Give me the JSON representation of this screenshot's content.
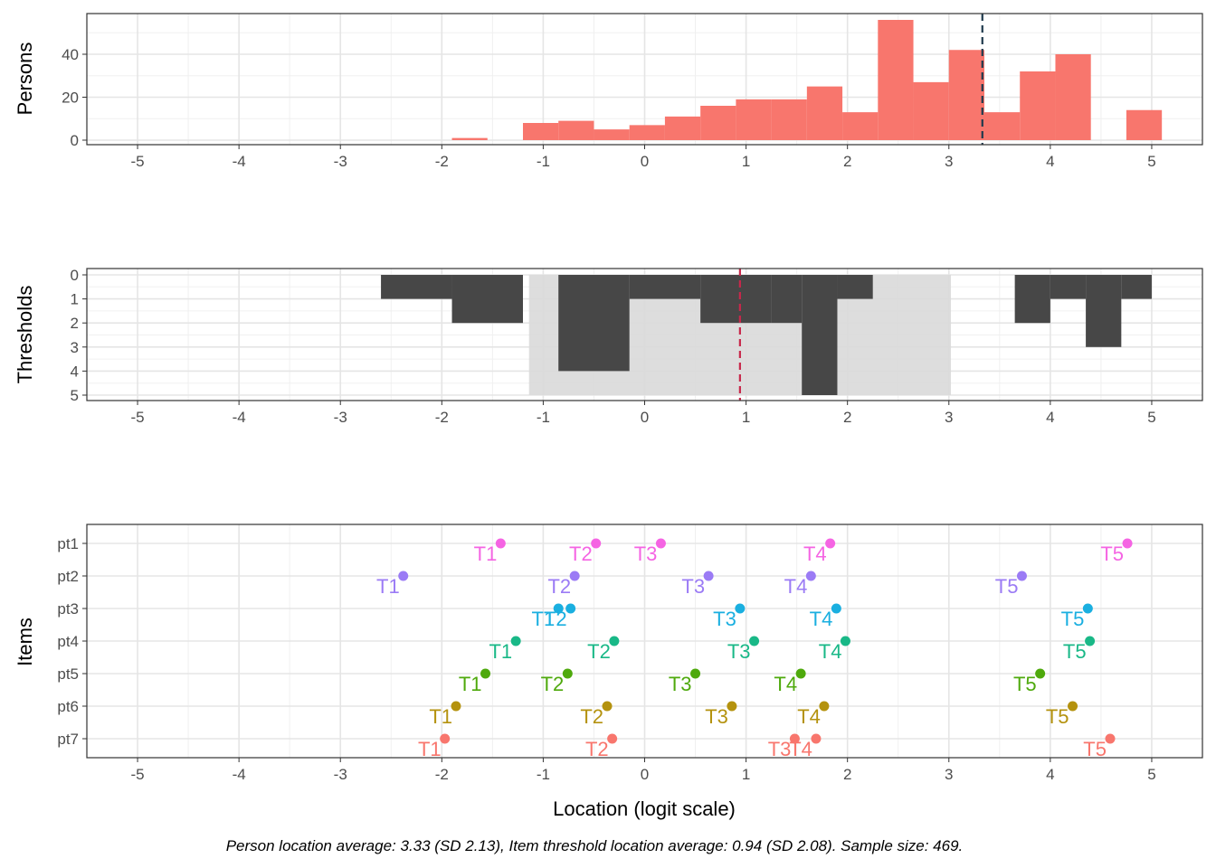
{
  "chart_data": [
    {
      "type": "bar",
      "ylabel": "Persons",
      "xlim": [
        -5.5,
        5.5
      ],
      "ylim": [
        0,
        58
      ],
      "x_ticks": [
        -5,
        -4,
        -3,
        -2,
        -1,
        0,
        1,
        2,
        3,
        4,
        5
      ],
      "y_ticks": [
        0,
        20,
        40
      ],
      "bar_color": "#F8766D",
      "bins": [
        {
          "x0": -1.9,
          "x1": -1.55,
          "count": 1
        },
        {
          "x0": -1.2,
          "x1": -0.85,
          "count": 8
        },
        {
          "x0": -0.85,
          "x1": -0.5,
          "count": 9
        },
        {
          "x0": -0.5,
          "x1": -0.15,
          "count": 5
        },
        {
          "x0": -0.15,
          "x1": 0.2,
          "count": 7
        },
        {
          "x0": 0.2,
          "x1": 0.55,
          "count": 11
        },
        {
          "x0": 0.55,
          "x1": 0.9,
          "count": 16
        },
        {
          "x0": 0.9,
          "x1": 1.25,
          "count": 19
        },
        {
          "x0": 1.25,
          "x1": 1.6,
          "count": 19
        },
        {
          "x0": 1.6,
          "x1": 1.95,
          "count": 25
        },
        {
          "x0": 1.95,
          "x1": 2.3,
          "count": 13
        },
        {
          "x0": 2.3,
          "x1": 2.65,
          "count": 56
        },
        {
          "x0": 2.65,
          "x1": 3.0,
          "count": 27
        },
        {
          "x0": 3.0,
          "x1": 3.35,
          "count": 42
        },
        {
          "x0": 3.35,
          "x1": 3.7,
          "count": 13
        },
        {
          "x0": 3.7,
          "x1": 4.05,
          "count": 32
        },
        {
          "x0": 4.05,
          "x1": 4.4,
          "count": 40
        },
        {
          "x0": 4.75,
          "x1": 5.1,
          "count": 14
        }
      ],
      "mean_line": {
        "x": 3.33,
        "color": "#1F3A4D"
      }
    },
    {
      "type": "bar",
      "ylabel": "Thresholds",
      "xlim": [
        -5.5,
        5.5
      ],
      "ylim": [
        0,
        5
      ],
      "y_reversed": true,
      "x_ticks": [
        -5,
        -4,
        -3,
        -2,
        -1,
        0,
        1,
        2,
        3,
        4,
        5
      ],
      "y_ticks": [
        0,
        1,
        2,
        3,
        4,
        5
      ],
      "bar_color": "#474747",
      "bins": [
        {
          "x0": -2.6,
          "x1": -1.9,
          "count": 1
        },
        {
          "x0": -1.9,
          "x1": -1.2,
          "count": 2
        },
        {
          "x0": -0.85,
          "x1": -0.15,
          "count": 4
        },
        {
          "x0": -0.15,
          "x1": 0.55,
          "count": 1
        },
        {
          "x0": 0.55,
          "x1": 1.25,
          "count": 2
        },
        {
          "x0": 1.25,
          "x1": 1.55,
          "count": 2
        },
        {
          "x0": 1.55,
          "x1": 1.9,
          "count": 5
        },
        {
          "x0": 1.9,
          "x1": 2.25,
          "count": 1
        },
        {
          "x0": 3.65,
          "x1": 4.0,
          "count": 2
        },
        {
          "x0": 4.0,
          "x1": 4.35,
          "count": 1
        },
        {
          "x0": 4.35,
          "x1": 4.7,
          "count": 3
        },
        {
          "x0": 4.7,
          "x1": 5.0,
          "count": 1
        }
      ],
      "sd_band": {
        "x0": -1.14,
        "x1": 3.02,
        "color": "#D9D9D9"
      },
      "mean_line": {
        "x": 0.94,
        "color": "#C8284B"
      }
    },
    {
      "type": "scatter",
      "ylabel": "Items",
      "xlabel": "Location (logit scale)",
      "xlim": [
        -5.5,
        5.5
      ],
      "x_ticks": [
        -5,
        -4,
        -3,
        -2,
        -1,
        0,
        1,
        2,
        3,
        4,
        5
      ],
      "categories": [
        "pt1",
        "pt2",
        "pt3",
        "pt4",
        "pt5",
        "pt6",
        "pt7"
      ],
      "series": [
        {
          "item": "pt1",
          "color": "#F564E3",
          "thresholds": [
            {
              "label": "T1",
              "x": -1.42
            },
            {
              "label": "T2",
              "x": -0.48
            },
            {
              "label": "T3",
              "x": 0.16
            },
            {
              "label": "T4",
              "x": 1.83
            },
            {
              "label": "T5",
              "x": 4.76
            }
          ]
        },
        {
          "item": "pt2",
          "color": "#9B7BF5",
          "thresholds": [
            {
              "label": "T1",
              "x": -2.38
            },
            {
              "label": "T2",
              "x": -0.69
            },
            {
              "label": "T3",
              "x": 0.63
            },
            {
              "label": "T4",
              "x": 1.64
            },
            {
              "label": "T5",
              "x": 3.72
            }
          ]
        },
        {
          "item": "pt3",
          "color": "#1AAFE0",
          "thresholds": [
            {
              "label": "T1",
              "x": -0.85
            },
            {
              "label": "T2",
              "x": -0.73
            },
            {
              "label": "T3",
              "x": 0.94
            },
            {
              "label": "T4",
              "x": 1.89
            },
            {
              "label": "T5",
              "x": 4.37
            }
          ]
        },
        {
          "item": "pt4",
          "color": "#19B887",
          "thresholds": [
            {
              "label": "T1",
              "x": -1.27
            },
            {
              "label": "T2",
              "x": -0.3
            },
            {
              "label": "T3",
              "x": 1.08
            },
            {
              "label": "T4",
              "x": 1.98
            },
            {
              "label": "T5",
              "x": 4.39
            }
          ]
        },
        {
          "item": "pt5",
          "color": "#4EA90C",
          "thresholds": [
            {
              "label": "T1",
              "x": -1.57
            },
            {
              "label": "T2",
              "x": -0.76
            },
            {
              "label": "T3",
              "x": 0.5
            },
            {
              "label": "T4",
              "x": 1.54
            },
            {
              "label": "T5",
              "x": 3.9
            }
          ]
        },
        {
          "item": "pt6",
          "color": "#B4920E",
          "thresholds": [
            {
              "label": "T1",
              "x": -1.86
            },
            {
              "label": "T2",
              "x": -0.37
            },
            {
              "label": "T3",
              "x": 0.86
            },
            {
              "label": "T4",
              "x": 1.77
            },
            {
              "label": "T5",
              "x": 4.22
            }
          ]
        },
        {
          "item": "pt7",
          "color": "#F8766D",
          "thresholds": [
            {
              "label": "T1",
              "x": -1.97
            },
            {
              "label": "T2",
              "x": -0.32
            },
            {
              "label": "T3",
              "x": 1.48
            },
            {
              "label": "T4",
              "x": 1.69
            },
            {
              "label": "T5",
              "x": 4.59
            }
          ]
        }
      ]
    }
  ],
  "caption": "Person location average: 3.33 (SD 2.13), Item threshold location average: 0.94 (SD 2.08). Sample size: 469."
}
